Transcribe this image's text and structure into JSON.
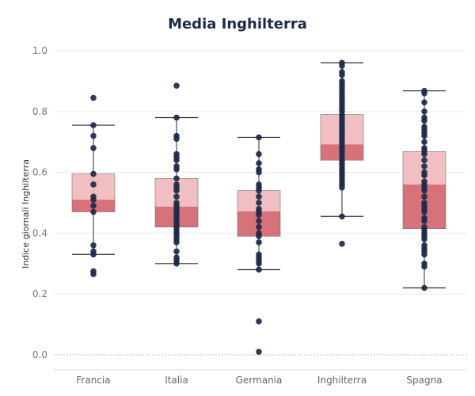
{
  "chart_data": {
    "type": "box",
    "title": "Media Inghilterra",
    "xlabel": "",
    "ylabel": "Indice giornali Inghilterra",
    "ylim": [
      -0.05,
      1.0
    ],
    "yticks": [
      "0.0",
      "0.2",
      "0.4",
      "0.6",
      "0.8",
      "1.0"
    ],
    "grid": true,
    "colors": {
      "upper_box": "#f0b8bb",
      "lower_box": "#d4636b",
      "point": "#1b2a4a",
      "whisker": "#2b2b2b",
      "grid": "#ececec",
      "zero_line": "#bbbbbb"
    },
    "categories": [
      "Francia",
      "Italia",
      "Germania",
      "Inghilterra",
      "Spagna"
    ],
    "boxes": [
      {
        "name": "Francia",
        "whisker_low": 0.33,
        "q1": 0.47,
        "median": 0.51,
        "q3": 0.595,
        "whisker_high": 0.755,
        "points": [
          0.845,
          0.755,
          0.72,
          0.68,
          0.595,
          0.56,
          0.52,
          0.51,
          0.49,
          0.47,
          0.36,
          0.34,
          0.33,
          0.275,
          0.265
        ]
      },
      {
        "name": "Italia",
        "whisker_low": 0.3,
        "q1": 0.42,
        "median": 0.487,
        "q3": 0.58,
        "whisker_high": 0.78,
        "points": [
          0.885,
          0.78,
          0.72,
          0.71,
          0.66,
          0.65,
          0.64,
          0.62,
          0.61,
          0.58,
          0.56,
          0.55,
          0.54,
          0.52,
          0.5,
          0.49,
          0.48,
          0.47,
          0.46,
          0.45,
          0.44,
          0.43,
          0.42,
          0.41,
          0.4,
          0.39,
          0.38,
          0.37,
          0.34,
          0.32,
          0.31,
          0.3
        ]
      },
      {
        "name": "Germania",
        "whisker_low": 0.28,
        "q1": 0.39,
        "median": 0.472,
        "q3": 0.54,
        "whisker_high": 0.715,
        "points": [
          0.715,
          0.66,
          0.63,
          0.61,
          0.6,
          0.56,
          0.55,
          0.54,
          0.52,
          0.5,
          0.48,
          0.47,
          0.46,
          0.44,
          0.42,
          0.4,
          0.39,
          0.37,
          0.33,
          0.32,
          0.31,
          0.3,
          0.28,
          0.11,
          0.01
        ]
      },
      {
        "name": "Inghilterra",
        "whisker_low": 0.455,
        "q1": 0.64,
        "median": 0.692,
        "q3": 0.79,
        "whisker_high": 0.96,
        "points": [
          0.96,
          0.95,
          0.93,
          0.92,
          0.9,
          0.89,
          0.88,
          0.87,
          0.86,
          0.85,
          0.84,
          0.83,
          0.82,
          0.81,
          0.8,
          0.79,
          0.78,
          0.77,
          0.76,
          0.75,
          0.74,
          0.73,
          0.72,
          0.71,
          0.7,
          0.69,
          0.68,
          0.67,
          0.66,
          0.65,
          0.64,
          0.63,
          0.62,
          0.61,
          0.6,
          0.59,
          0.58,
          0.57,
          0.56,
          0.55,
          0.455,
          0.365
        ]
      },
      {
        "name": "Spagna",
        "whisker_low": 0.22,
        "q1": 0.415,
        "median": 0.56,
        "q3": 0.668,
        "whisker_high": 0.868,
        "points": [
          0.868,
          0.86,
          0.83,
          0.8,
          0.78,
          0.77,
          0.75,
          0.74,
          0.73,
          0.72,
          0.7,
          0.68,
          0.67,
          0.66,
          0.64,
          0.62,
          0.6,
          0.59,
          0.57,
          0.56,
          0.55,
          0.54,
          0.52,
          0.5,
          0.49,
          0.48,
          0.47,
          0.45,
          0.44,
          0.42,
          0.41,
          0.4,
          0.39,
          0.38,
          0.36,
          0.35,
          0.34,
          0.33,
          0.3,
          0.29,
          0.22
        ]
      }
    ]
  }
}
